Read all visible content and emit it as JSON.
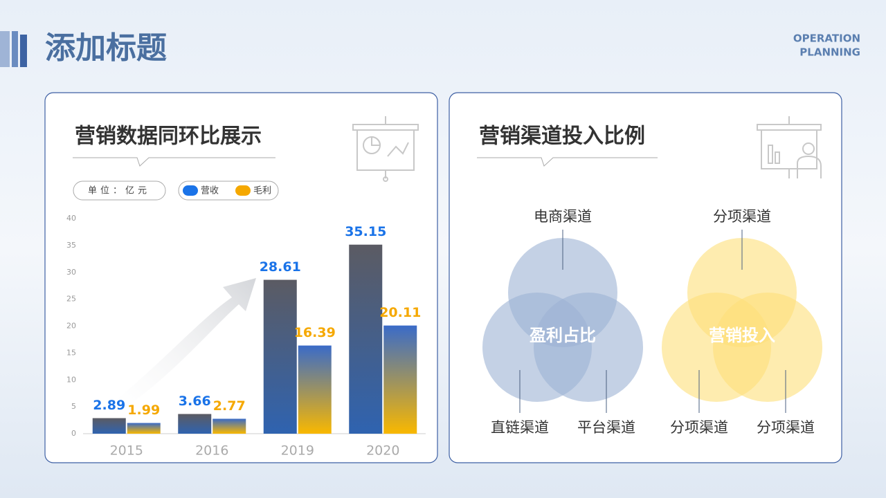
{
  "header": {
    "title": "添加标题",
    "subtitle_lines": [
      "OPERATION",
      "PLANNING"
    ]
  },
  "chart_data": {
    "type": "bar",
    "title": "营销数据同环比展示",
    "unit_label": "单位：亿元",
    "categories": [
      "2015",
      "2016",
      "2019",
      "2020"
    ],
    "series": [
      {
        "name": "营收",
        "color": "#1a73e8",
        "values": [
          2.89,
          3.66,
          28.61,
          35.15
        ]
      },
      {
        "name": "毛利",
        "color": "#f5a800",
        "values": [
          1.99,
          2.77,
          16.39,
          20.11
        ]
      }
    ],
    "ylim": [
      0,
      40
    ],
    "yticks": [
      0,
      5,
      10,
      15,
      20,
      25,
      30,
      35,
      40
    ],
    "grid": false
  },
  "venn_panel": {
    "title": "营销渠道投入比例",
    "diagrams": [
      {
        "center": "盈利占比",
        "color": "#9db3d4",
        "labels": [
          "电商渠道",
          "直链渠道",
          "平台渠道"
        ]
      },
      {
        "center": "营销投入",
        "color": "#fde07a",
        "labels": [
          "分项渠道",
          "分项渠道",
          "分项渠道"
        ]
      }
    ]
  }
}
